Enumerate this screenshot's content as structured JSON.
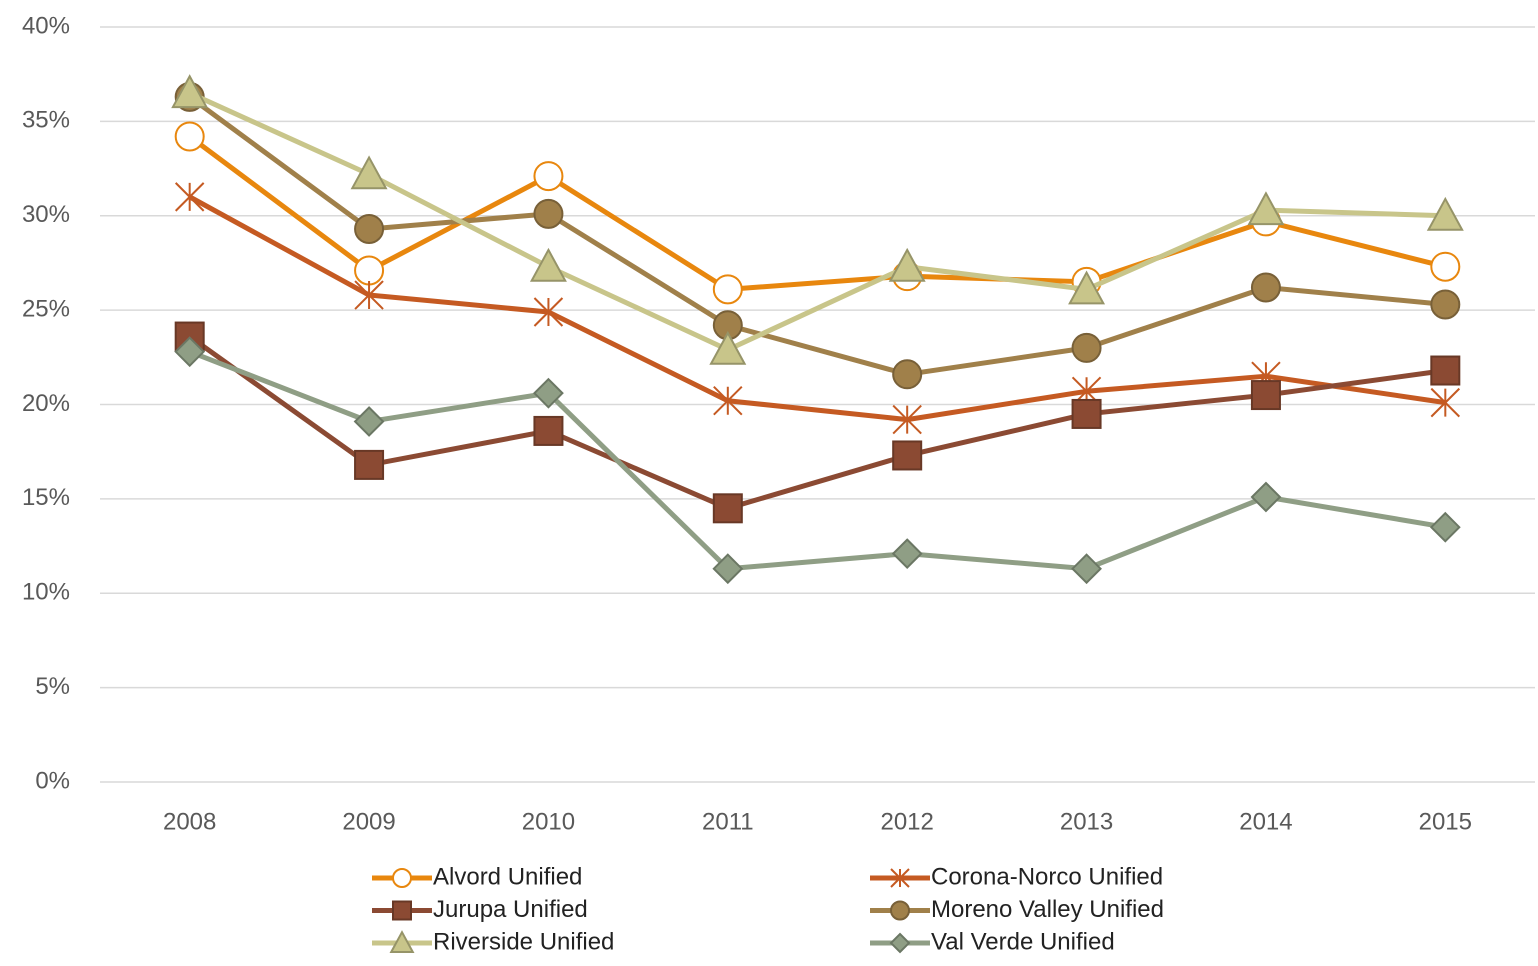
{
  "chart_data": {
    "type": "line",
    "categories": [
      "2008",
      "2009",
      "2010",
      "2011",
      "2012",
      "2013",
      "2014",
      "2015"
    ],
    "series": [
      {
        "name": "Alvord Unified",
        "color": "#e8870e",
        "marker": "circle-open",
        "values": [
          34.2,
          27.1,
          32.1,
          26.1,
          26.8,
          26.5,
          29.7,
          27.3
        ]
      },
      {
        "name": "Corona-Norco Unified",
        "color": "#c55a22",
        "marker": "star",
        "values": [
          31.0,
          25.8,
          24.9,
          20.2,
          19.2,
          20.7,
          21.5,
          20.1
        ]
      },
      {
        "name": "Jurupa Unified",
        "color": "#8b4a33",
        "marker": "square",
        "values": [
          23.6,
          16.8,
          18.6,
          14.5,
          17.3,
          19.5,
          20.5,
          21.8
        ]
      },
      {
        "name": "Moreno Valley Unified",
        "color": "#a0804a",
        "marker": "circle",
        "values": [
          36.3,
          29.3,
          30.1,
          24.2,
          21.6,
          23.0,
          26.2,
          25.3
        ]
      },
      {
        "name": "Riverside Unified",
        "color": "#c8c58a",
        "marker": "triangle",
        "values": [
          36.5,
          32.2,
          27.3,
          22.9,
          27.3,
          26.1,
          30.3,
          30.0
        ]
      },
      {
        "name": "Val Verde Unified",
        "color": "#8f9e85",
        "marker": "diamond",
        "values": [
          22.8,
          19.1,
          20.6,
          11.3,
          12.1,
          11.3,
          15.1,
          13.5
        ]
      }
    ],
    "ylim": [
      0,
      40
    ],
    "yticks": [
      {
        "value": 0,
        "label": "0%"
      },
      {
        "value": 5,
        "label": "5%"
      },
      {
        "value": 10,
        "label": "10%"
      },
      {
        "value": 15,
        "label": "15%"
      },
      {
        "value": 20,
        "label": "20%"
      },
      {
        "value": 25,
        "label": "25%"
      },
      {
        "value": 30,
        "label": "30%"
      },
      {
        "value": 35,
        "label": "35%"
      },
      {
        "value": 40,
        "label": "40%"
      }
    ],
    "grid": true,
    "legend": "bottom"
  }
}
